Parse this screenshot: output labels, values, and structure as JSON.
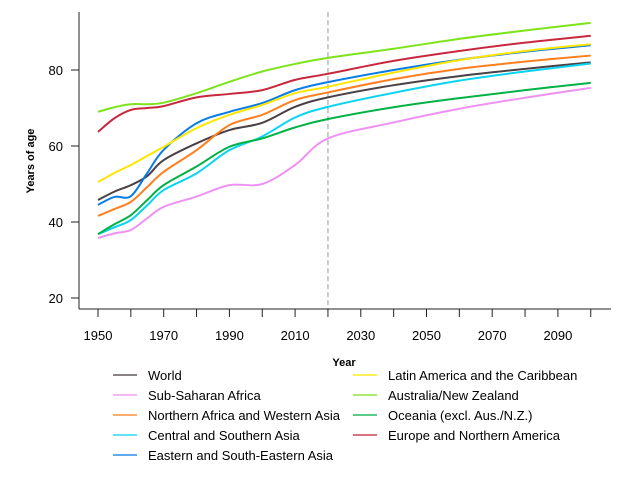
{
  "chart_data": {
    "type": "line",
    "title": "",
    "xlabel": "Year",
    "ylabel": "Years of age",
    "xlim": [
      1950,
      2100
    ],
    "ylim": [
      20,
      95
    ],
    "x_ticks": [
      1950,
      1960,
      1970,
      1980,
      1990,
      2000,
      2010,
      2020,
      2030,
      2040,
      2050,
      2060,
      2070,
      2080,
      2090,
      2100
    ],
    "x_tick_labels": [
      "1950",
      "",
      "1970",
      "",
      "1990",
      "",
      "2010",
      "",
      "2030",
      "",
      "2050",
      "",
      "2070",
      "",
      "2090",
      ""
    ],
    "y_ticks": [
      20,
      40,
      60,
      80
    ],
    "y_tick_labels": [
      "20",
      "40",
      "60",
      "80"
    ],
    "reference_line": {
      "x": 2020,
      "style": "dashed"
    },
    "grid": false,
    "legend_position": "bottom",
    "x": [
      1950,
      1955,
      1960,
      1965,
      1970,
      1980,
      1990,
      2000,
      2010,
      2020,
      2040,
      2060,
      2080,
      2100
    ],
    "series": [
      {
        "name": "World",
        "color": "#4a4046",
        "values": [
          45.8,
          48.0,
          49.7,
          52.1,
          56.3,
          60.7,
          64.2,
          66.1,
          70.3,
          72.8,
          76.0,
          78.4,
          80.3,
          82.0
        ]
      },
      {
        "name": "Sub-Saharan Africa",
        "color": "#ee92f2",
        "values": [
          35.8,
          37.0,
          37.9,
          41.0,
          44.0,
          46.7,
          49.7,
          50.0,
          55.0,
          62.0,
          66.2,
          69.8,
          72.7,
          75.3
        ]
      },
      {
        "name": "Northern Africa and Western Asia",
        "color": "#ff7f1e",
        "values": [
          41.6,
          43.4,
          45.3,
          49.2,
          53.2,
          58.9,
          65.5,
          68.2,
          72.1,
          74.1,
          77.6,
          80.3,
          82.2,
          83.8
        ]
      },
      {
        "name": "Central and Southern Asia",
        "color": "#0ad4f2",
        "values": [
          36.8,
          38.6,
          40.5,
          44.4,
          48.4,
          52.8,
          58.9,
          62.5,
          67.5,
          70.3,
          74.0,
          77.2,
          79.6,
          81.7
        ]
      },
      {
        "name": "Eastern and South-Eastern Asia",
        "color": "#0a7ce6",
        "values": [
          44.5,
          46.6,
          46.8,
          52.9,
          59.0,
          66.0,
          69.0,
          71.3,
          74.7,
          76.8,
          80.0,
          82.7,
          84.8,
          86.5
        ]
      },
      {
        "name": "Latin America and the Caribbean",
        "color": "#ffe600",
        "values": [
          50.5,
          52.9,
          55.0,
          57.4,
          59.8,
          64.7,
          68.2,
          70.8,
          73.9,
          75.6,
          79.3,
          82.6,
          85.0,
          86.8
        ]
      },
      {
        "name": "Australia/New Zealand",
        "color": "#7ee31a",
        "values": [
          69.0,
          70.2,
          71.0,
          71.0,
          71.4,
          73.9,
          76.9,
          79.6,
          81.6,
          83.2,
          85.6,
          88.2,
          90.4,
          92.4
        ]
      },
      {
        "name": "Oceania (excl. Aus./N.Z.)",
        "color": "#00b246",
        "values": [
          36.8,
          39.4,
          41.8,
          45.8,
          49.7,
          54.6,
          59.8,
          62.0,
          64.9,
          67.1,
          70.2,
          72.6,
          74.7,
          76.6
        ]
      },
      {
        "name": "Europe and Northern America",
        "color": "#c8283e",
        "values": [
          63.7,
          67.3,
          69.5,
          70.0,
          70.5,
          72.8,
          73.7,
          74.7,
          77.4,
          79.0,
          82.4,
          85.0,
          87.2,
          89.0
        ]
      }
    ],
    "legend_order": [
      0,
      1,
      2,
      3,
      4,
      5,
      6,
      7,
      8
    ]
  }
}
